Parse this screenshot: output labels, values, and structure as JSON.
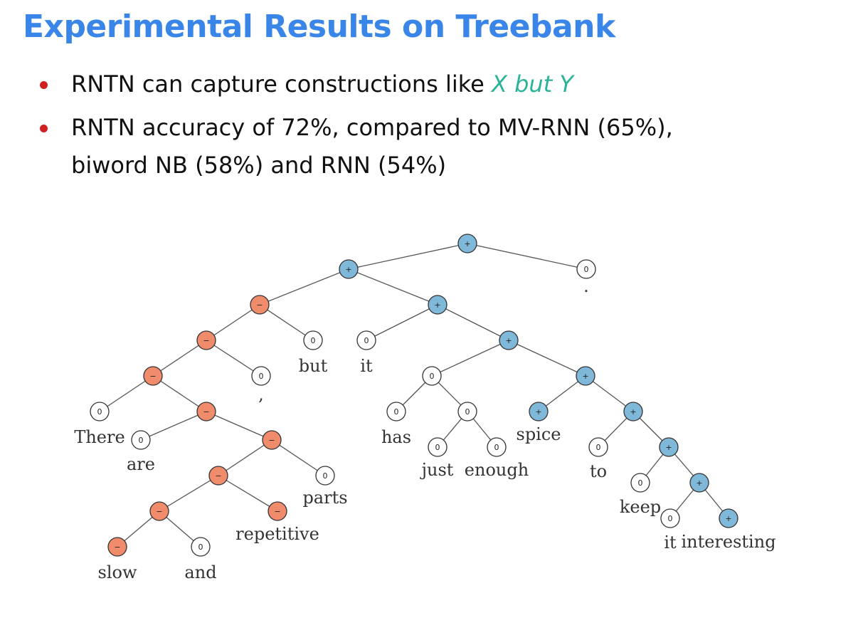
{
  "slide": {
    "title": "Experimental Results on Treebank",
    "bullet1_text": "RNTN can capture constructions like ",
    "bullet1_highlight": "X but Y",
    "bullet2_line1": "RNTN accuracy of 72%, compared to MV-RNN (65%),",
    "bullet2_line2": "biword NB (58%) and RNN (54%)"
  },
  "colors": {
    "title": "#3a86e8",
    "highlight": "#2bb39a",
    "bullet_dot": "#d02020",
    "negative_node": "#f08c6c",
    "positive_node": "#7fb8d8",
    "neutral_node": "#ffffff"
  },
  "labels": {
    "neg": "−",
    "pos": "+",
    "neu": "0"
  },
  "tree": {
    "nodes": [
      {
        "id": "root",
        "label": "pos"
      },
      {
        "id": "n1",
        "label": "pos",
        "parent": "root"
      },
      {
        "id": "dot",
        "label": "neu",
        "parent": "root",
        "word": "."
      },
      {
        "id": "n2",
        "label": "neg",
        "parent": "n1"
      },
      {
        "id": "n3",
        "label": "pos",
        "parent": "n1"
      },
      {
        "id": "n4",
        "label": "neg",
        "parent": "n2"
      },
      {
        "id": "but",
        "label": "neu",
        "parent": "n2",
        "word": "but"
      },
      {
        "id": "n5",
        "label": "neg",
        "parent": "n4"
      },
      {
        "id": "comma",
        "label": "neu",
        "parent": "n4",
        "word": ","
      },
      {
        "id": "there",
        "label": "neu",
        "parent": "n5",
        "word": "There"
      },
      {
        "id": "n6",
        "label": "neg",
        "parent": "n5"
      },
      {
        "id": "are",
        "label": "neu",
        "parent": "n6",
        "word": "are"
      },
      {
        "id": "n7",
        "label": "neg",
        "parent": "n6"
      },
      {
        "id": "n8",
        "label": "neg",
        "parent": "n7"
      },
      {
        "id": "parts",
        "label": "neu",
        "parent": "n7",
        "word": "parts"
      },
      {
        "id": "n9",
        "label": "neg",
        "parent": "n8"
      },
      {
        "id": "repetitive",
        "label": "neg",
        "parent": "n8",
        "word": "repetitive"
      },
      {
        "id": "slow",
        "label": "neg",
        "parent": "n9",
        "word": "slow"
      },
      {
        "id": "and",
        "label": "neu",
        "parent": "n9",
        "word": "and"
      },
      {
        "id": "it1",
        "label": "neu",
        "parent": "n3",
        "word": "it"
      },
      {
        "id": "n10",
        "label": "pos",
        "parent": "n3"
      },
      {
        "id": "n11",
        "label": "neu",
        "parent": "n10"
      },
      {
        "id": "n12",
        "label": "pos",
        "parent": "n10"
      },
      {
        "id": "has",
        "label": "neu",
        "parent": "n11",
        "word": "has"
      },
      {
        "id": "n13",
        "label": "neu",
        "parent": "n11"
      },
      {
        "id": "just",
        "label": "neu",
        "parent": "n13",
        "word": "just"
      },
      {
        "id": "enough",
        "label": "neu",
        "parent": "n13",
        "word": "enough"
      },
      {
        "id": "spice",
        "label": "pos",
        "parent": "n12",
        "word": "spice"
      },
      {
        "id": "n14",
        "label": "pos",
        "parent": "n12"
      },
      {
        "id": "to",
        "label": "neu",
        "parent": "n14",
        "word": "to"
      },
      {
        "id": "n15",
        "label": "pos",
        "parent": "n14"
      },
      {
        "id": "keep",
        "label": "neu",
        "parent": "n15",
        "word": "keep"
      },
      {
        "id": "n16",
        "label": "pos",
        "parent": "n15"
      },
      {
        "id": "it2",
        "label": "neu",
        "parent": "n16",
        "word": "it"
      },
      {
        "id": "interesting",
        "label": "pos",
        "parent": "n16",
        "word": "interesting"
      }
    ]
  }
}
